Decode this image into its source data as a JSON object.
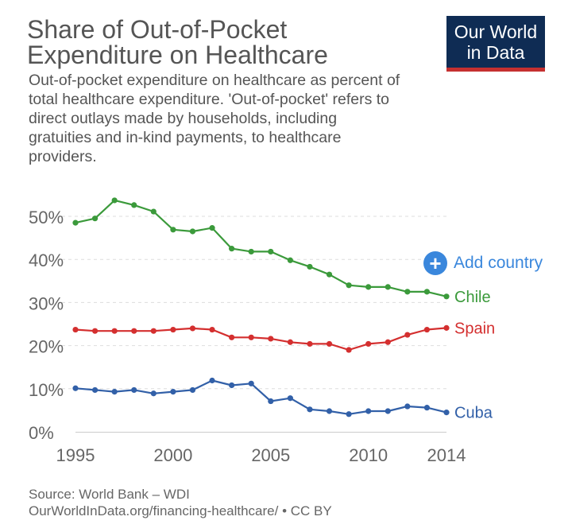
{
  "title": "Share of Out-of-Pocket Expenditure on Healthcare",
  "subtitle": "Out-of-pocket expenditure on healthcare as percent of total healthcare expenditure. 'Out-of-pocket' refers to direct outlays made by households, including gratuities and in-kind payments, to healthcare providers.",
  "logo": {
    "line1": "Our World",
    "line2": "in Data"
  },
  "add_country_label": "Add country",
  "source": "Source: World Bank – WDI",
  "license": "OurWorldInData.org/financing-healthcare/ • CC BY",
  "colors": {
    "chile": "#3b9a3b",
    "spain": "#d42f2f",
    "cuba": "#3260a8",
    "accent": "#3a87dc",
    "logo_bg": "#0f2c54",
    "logo_bar": "#c53030"
  },
  "chart_data": {
    "type": "line",
    "ylim": [
      0,
      55
    ],
    "xlim": [
      1995,
      2014
    ],
    "grid": true,
    "legend": "line-end labels",
    "y_ticks": [
      0,
      10,
      20,
      30,
      40,
      50
    ],
    "y_tick_labels": [
      "0%",
      "10%",
      "20%",
      "30%",
      "40%",
      "50%"
    ],
    "x_ticks": [
      1995,
      2000,
      2005,
      2010,
      2014
    ],
    "x_tick_labels": [
      "1995",
      "2000",
      "2005",
      "2010",
      "2014"
    ],
    "x": [
      1995,
      1996,
      1997,
      1998,
      1999,
      2000,
      2001,
      2002,
      2003,
      2004,
      2005,
      2006,
      2007,
      2008,
      2009,
      2010,
      2011,
      2012,
      2013,
      2014
    ],
    "series": [
      {
        "name": "Chile",
        "color": "#3b9a3b",
        "values": [
          48.5,
          49.5,
          53.7,
          52.6,
          51.1,
          46.9,
          46.5,
          47.3,
          42.5,
          41.8,
          41.8,
          39.8,
          38.3,
          36.5,
          34.0,
          33.6,
          33.6,
          32.5,
          32.5,
          31.4
        ]
      },
      {
        "name": "Spain",
        "color": "#d42f2f",
        "values": [
          23.7,
          23.4,
          23.4,
          23.4,
          23.4,
          23.7,
          24.0,
          23.7,
          21.9,
          21.9,
          21.6,
          20.8,
          20.4,
          20.4,
          19.0,
          20.4,
          20.8,
          22.5,
          23.7,
          24.1
        ]
      },
      {
        "name": "Cuba",
        "color": "#3260a8",
        "values": [
          10.1,
          9.7,
          9.3,
          9.7,
          8.9,
          9.3,
          9.7,
          11.9,
          10.8,
          11.2,
          7.1,
          7.8,
          5.2,
          4.8,
          4.1,
          4.8,
          4.8,
          5.9,
          5.6,
          4.5
        ]
      }
    ]
  }
}
